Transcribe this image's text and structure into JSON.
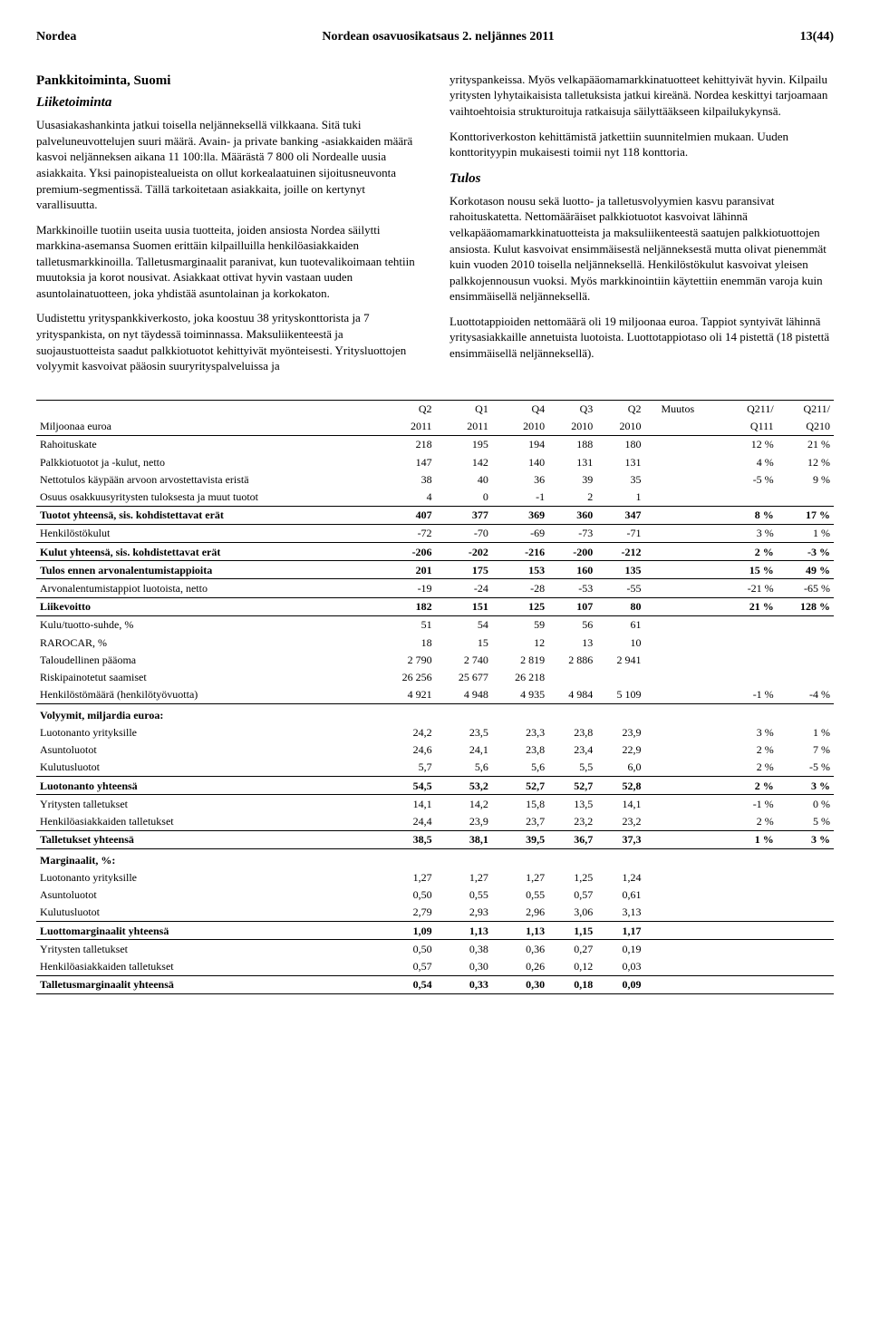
{
  "header": {
    "left": "Nordea",
    "center": "Nordean osavuosikatsaus 2. neljännes 2011",
    "right": "13(44)"
  },
  "left_column": {
    "section_title": "Pankkitoiminta, Suomi",
    "subsection_title": "Liiketoiminta",
    "paragraphs": [
      "Uusasiakashankinta jatkui toisella neljänneksellä vilkkaana. Sitä tuki palveluneuvottelujen suuri määrä. Avain- ja private banking -asiakkaiden määrä kasvoi neljänneksen aikana 11 100:lla. Määrästä 7 800 oli Nordealle uusia asiakkaita. Yksi painopistealueista on ollut korkealaatuinen sijoitusneuvonta premium-segmentissä. Tällä tarkoitetaan asiakkaita, joille on kertynyt varallisuutta.",
      "Markkinoille tuotiin useita uusia tuotteita, joiden ansiosta Nordea säilytti markkina-asemansa Suomen erittäin kilpailluilla henkilöasiakkaiden talletusmarkkinoilla. Talletusmarginaalit paranivat, kun tuotevalikoimaan tehtiin muutoksia ja korot nousivat. Asiakkaat ottivat hyvin vastaan uuden asuntolainatuotteen, joka yhdistää asuntolainan ja korkokaton.",
      "Uudistettu yrityspankkiverkosto, joka koostuu 38 yrityskonttorista ja 7 yrityspankista, on nyt täydessä toiminnassa. Maksuliikenteestä ja suojaustuotteista saadut palkkiotuotot kehittyivät myönteisesti. Yritysluottojen volyymit kasvoivat pääosin suuryrityspalveluissa ja"
    ]
  },
  "right_column": {
    "paragraphs_top": [
      "yrityspankeissa. Myös velkapääomamarkkinatuotteet kehittyivät hyvin. Kilpailu yritysten lyhytaikaisista talletuksista jatkui kireänä. Nordea keskittyi tarjoamaan vaihtoehtoisia strukturoituja ratkaisuja säilyttääkseen kilpailukykynsä.",
      "Konttoriverkoston kehittämistä jatkettiin suunnitelmien mukaan. Uuden konttorityypin mukaisesti toimii nyt 118 konttoria."
    ],
    "subsection_title": "Tulos",
    "paragraphs_tulos": [
      "Korkotason nousu sekä luotto- ja talletusvolyymien kasvu paransivat rahoituskatetta. Nettomääräiset palkkiotuotot kasvoivat lähinnä velkapääomamarkkinatuotteista ja maksuliikenteestä saatujen palkkiotuottojen ansiosta. Kulut kasvoivat ensimmäisestä neljänneksestä mutta olivat pienemmät kuin vuoden 2010 toisella neljänneksellä. Henkilöstökulut kasvoivat yleisen palkkojennousun vuoksi. Myös markkinointiin käytettiin enemmän varoja kuin ensimmäisellä neljänneksellä.",
      "Luottotappioiden nettomäärä oli 19 miljoonaa euroa. Tappiot syntyivät lähinnä yritysasiakkaille annetuista luotoista. Luottotappiotaso oli 14 pistettä (18 pistettä ensimmäisellä neljänneksellä)."
    ]
  },
  "table": {
    "col_headers_top": [
      "",
      "Q2",
      "Q1",
      "Q4",
      "Q3",
      "Q2",
      "Muutos",
      "Q211/",
      "Q211/"
    ],
    "col_headers_bottom": [
      "Miljoonaa euroa",
      "2011",
      "2011",
      "2010",
      "2010",
      "2010",
      "",
      "Q111",
      "Q210"
    ],
    "rows": [
      {
        "label": "Rahoituskate",
        "v": [
          "218",
          "195",
          "194",
          "188",
          "180",
          "",
          "12 %",
          "21 %"
        ],
        "bold": false
      },
      {
        "label": "Palkkiotuotot ja -kulut, netto",
        "v": [
          "147",
          "142",
          "140",
          "131",
          "131",
          "",
          "4 %",
          "12 %"
        ],
        "bold": false
      },
      {
        "label": "Nettotulos käypään arvoon arvostettavista eristä",
        "v": [
          "38",
          "40",
          "36",
          "39",
          "35",
          "",
          "-5 %",
          "9 %"
        ],
        "bold": false
      },
      {
        "label": "Osuus osakkuusyritysten tuloksesta ja muut tuotot",
        "v": [
          "4",
          "0",
          "-1",
          "2",
          "1",
          "",
          "",
          ""
        ],
        "bold": false
      },
      {
        "label": "Tuotot yhteensä, sis. kohdistettavat erät",
        "v": [
          "407",
          "377",
          "369",
          "360",
          "347",
          "",
          "8 %",
          "17 %"
        ],
        "bold": true,
        "bt": true
      },
      {
        "label": "Henkilöstökulut",
        "v": [
          "-72",
          "-70",
          "-69",
          "-73",
          "-71",
          "",
          "3 %",
          "1 %"
        ],
        "bold": false,
        "bt": true
      },
      {
        "label": "Kulut yhteensä, sis. kohdistettavat erät",
        "v": [
          "-206",
          "-202",
          "-216",
          "-200",
          "-212",
          "",
          "2 %",
          "-3 %"
        ],
        "bold": true,
        "bt": true
      },
      {
        "label": "Tulos ennen arvonalentumistappioita",
        "v": [
          "201",
          "175",
          "153",
          "160",
          "135",
          "",
          "15 %",
          "49 %"
        ],
        "bold": true,
        "bt": true
      },
      {
        "label": "Arvonalentumistappiot luotoista, netto",
        "v": [
          "-19",
          "-24",
          "-28",
          "-53",
          "-55",
          "",
          "-21 %",
          "-65 %"
        ],
        "bold": false,
        "bt": true
      },
      {
        "label": "Liikevoitto",
        "v": [
          "182",
          "151",
          "125",
          "107",
          "80",
          "",
          "21 %",
          "128 %"
        ],
        "bold": true,
        "bt": true,
        "bb": true
      },
      {
        "label": "Kulu/tuotto-suhde, %",
        "v": [
          "51",
          "54",
          "59",
          "56",
          "61",
          "",
          "",
          ""
        ],
        "bold": false
      },
      {
        "label": "RAROCAR, %",
        "v": [
          "18",
          "15",
          "12",
          "13",
          "10",
          "",
          "",
          ""
        ],
        "bold": false
      },
      {
        "label": "Taloudellinen pääoma",
        "v": [
          "2 790",
          "2 740",
          "2 819",
          "2 886",
          "2 941",
          "",
          "",
          ""
        ],
        "bold": false
      },
      {
        "label": "Riskipainotetut saamiset",
        "v": [
          "26 256",
          "25 677",
          "26 218",
          "",
          "",
          "",
          "",
          ""
        ],
        "bold": false
      },
      {
        "label": "Henkilöstömäärä (henkilötyövuotta)",
        "v": [
          "4 921",
          "4 948",
          "4 935",
          "4 984",
          "5 109",
          "",
          "-1 %",
          "-4 %"
        ],
        "bold": false,
        "bb": true
      }
    ],
    "vol_header": "Volyymit, miljardia euroa:",
    "vol_rows": [
      {
        "label": "Luotonanto yrityksille",
        "v": [
          "24,2",
          "23,5",
          "23,3",
          "23,8",
          "23,9",
          "",
          "3 %",
          "1 %"
        ],
        "bold": false
      },
      {
        "label": "Asuntoluotot",
        "v": [
          "24,6",
          "24,1",
          "23,8",
          "23,4",
          "22,9",
          "",
          "2 %",
          "7 %"
        ],
        "bold": false
      },
      {
        "label": "Kulutusluotot",
        "v": [
          "5,7",
          "5,6",
          "5,6",
          "5,5",
          "6,0",
          "",
          "2 %",
          "-5 %"
        ],
        "bold": false
      },
      {
        "label": "Luotonanto yhteensä",
        "v": [
          "54,5",
          "53,2",
          "52,7",
          "52,7",
          "52,8",
          "",
          "2 %",
          "3 %"
        ],
        "bold": true,
        "bt": true
      },
      {
        "label": "Yritysten talletukset",
        "v": [
          "14,1",
          "14,2",
          "15,8",
          "13,5",
          "14,1",
          "",
          "-1 %",
          "0 %"
        ],
        "bold": false,
        "bt": true
      },
      {
        "label": "Henkilöasiakkaiden talletukset",
        "v": [
          "24,4",
          "23,9",
          "23,7",
          "23,2",
          "23,2",
          "",
          "2 %",
          "5 %"
        ],
        "bold": false
      },
      {
        "label": "Talletukset yhteensä",
        "v": [
          "38,5",
          "38,1",
          "39,5",
          "36,7",
          "37,3",
          "",
          "1 %",
          "3 %"
        ],
        "bold": true,
        "bt": true,
        "bb": true
      }
    ],
    "marg_header": "Marginaalit, %:",
    "marg_rows": [
      {
        "label": "Luotonanto yrityksille",
        "v": [
          "1,27",
          "1,27",
          "1,27",
          "1,25",
          "1,24",
          "",
          "",
          ""
        ],
        "bold": false
      },
      {
        "label": "Asuntoluotot",
        "v": [
          "0,50",
          "0,55",
          "0,55",
          "0,57",
          "0,61",
          "",
          "",
          ""
        ],
        "bold": false
      },
      {
        "label": "Kulutusluotot",
        "v": [
          "2,79",
          "2,93",
          "2,96",
          "3,06",
          "3,13",
          "",
          "",
          ""
        ],
        "bold": false
      },
      {
        "label": "Luottomarginaalit yhteensä",
        "v": [
          "1,09",
          "1,13",
          "1,13",
          "1,15",
          "1,17",
          "",
          "",
          ""
        ],
        "bold": true,
        "bt": true
      },
      {
        "label": "Yritysten talletukset",
        "v": [
          "0,50",
          "0,38",
          "0,36",
          "0,27",
          "0,19",
          "",
          "",
          ""
        ],
        "bold": false,
        "bt": true
      },
      {
        "label": "Henkilöasiakkaiden talletukset",
        "v": [
          "0,57",
          "0,30",
          "0,26",
          "0,12",
          "0,03",
          "",
          "",
          ""
        ],
        "bold": false
      },
      {
        "label": "Talletusmarginaalit yhteensä",
        "v": [
          "0,54",
          "0,33",
          "0,30",
          "0,18",
          "0,09",
          "",
          "",
          ""
        ],
        "bold": true,
        "bt": true,
        "bb": true
      }
    ]
  }
}
